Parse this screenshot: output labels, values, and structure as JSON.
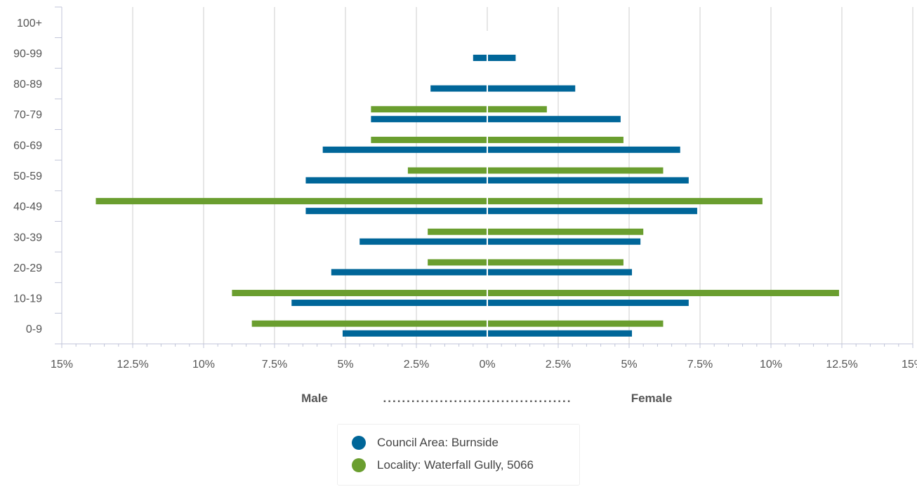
{
  "chart_data": {
    "type": "bar",
    "orientation": "horizontal-population-pyramid",
    "categories": [
      "0-9",
      "10-19",
      "20-29",
      "30-39",
      "40-49",
      "50-59",
      "60-69",
      "70-79",
      "80-89",
      "90-99",
      "100+"
    ],
    "x_tick_labels": [
      "15%",
      "12.5%",
      "10%",
      "7.5%",
      "5%",
      "2.5%",
      "0%",
      "2.5%",
      "5%",
      "7.5%",
      "10%",
      "12.5%",
      "15%"
    ],
    "xlim": [
      -15,
      15
    ],
    "left_label": "Male",
    "right_label": "Female",
    "axis_dots": "........................................",
    "series": [
      {
        "name": "Council Area: Burnside",
        "color": "#006699",
        "male": [
          5.1,
          6.9,
          5.5,
          4.5,
          6.4,
          6.4,
          5.8,
          4.1,
          2.0,
          0.5,
          0
        ],
        "female": [
          5.1,
          7.1,
          5.1,
          5.4,
          7.4,
          7.1,
          6.8,
          4.7,
          3.1,
          1.0,
          0
        ]
      },
      {
        "name": "Locality: Waterfall Gully, 5066",
        "color": "#6a9e2f",
        "male": [
          8.3,
          9.0,
          2.1,
          2.1,
          13.8,
          2.8,
          4.1,
          4.1,
          0,
          0,
          0
        ],
        "female": [
          6.2,
          12.4,
          4.8,
          5.5,
          9.7,
          6.2,
          4.8,
          2.1,
          0,
          0,
          0
        ]
      }
    ],
    "grid": true,
    "legend_position": "bottom-center"
  }
}
